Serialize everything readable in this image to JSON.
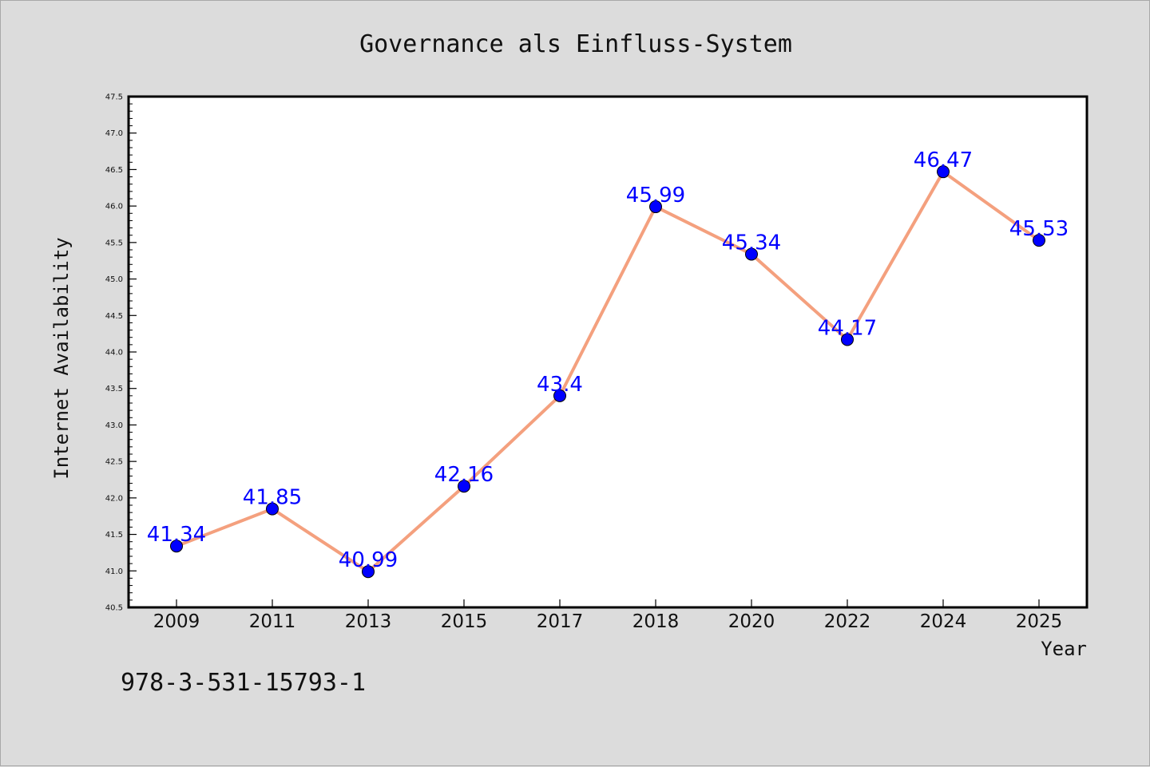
{
  "chart_data": {
    "type": "line",
    "title": "Governance als Einfluss-System",
    "xlabel": "Year",
    "ylabel": "Internet Availability",
    "categories": [
      "2009",
      "2011",
      "2013",
      "2015",
      "2017",
      "2018",
      "2020",
      "2022",
      "2024",
      "2025"
    ],
    "series": [
      {
        "values": [
          41.34,
          41.85,
          40.99,
          42.16,
          43.4,
          45.99,
          45.34,
          44.17,
          46.47,
          45.53
        ]
      }
    ],
    "data_labels": [
      "41.34",
      "41.85",
      "40.99",
      "42.16",
      "43.4",
      "45.99",
      "45.34",
      "44.17",
      "46.47",
      "45.53"
    ],
    "ylim": [
      40.5,
      47.5
    ],
    "yticks": [
      "40.5",
      "41.0",
      "41.5",
      "42.0",
      "42.5",
      "43.0",
      "43.5",
      "44.0",
      "44.5",
      "45.0",
      "45.5",
      "46.0",
      "46.5",
      "47.0",
      "47.5"
    ],
    "grid": false,
    "legend": "none",
    "colors": {
      "line": "#f4a07e",
      "marker": "#0000ff",
      "data_label": "#0000ff",
      "plot_background": "#ffffff",
      "figure_background": "#dcdcdc"
    }
  },
  "footer": {
    "code": "978-3-531-15793-1"
  }
}
